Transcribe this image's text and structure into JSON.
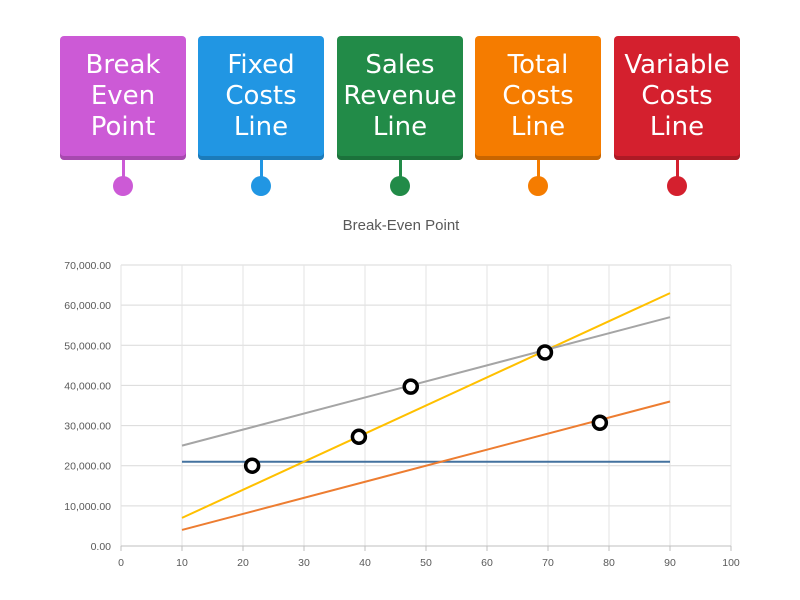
{
  "labels": [
    {
      "lines": [
        "Break",
        "Even",
        "Point"
      ],
      "color": "#cc5ad6"
    },
    {
      "lines": [
        "Fixed",
        "Costs",
        "Line"
      ],
      "color": "#2196e3"
    },
    {
      "lines": [
        "Sales",
        "Revenue",
        "Line"
      ],
      "color": "#228b48"
    },
    {
      "lines": [
        "Total",
        "Costs",
        "Line"
      ],
      "color": "#f57c00"
    },
    {
      "lines": [
        "Variable",
        "Costs",
        "Line"
      ],
      "color": "#d4202e"
    }
  ],
  "chart_data": {
    "type": "line",
    "title": "Break-Even Point",
    "xlabel": "",
    "ylabel": "",
    "xlim": [
      0,
      100
    ],
    "ylim": [
      0,
      70000
    ],
    "x_ticks": [
      "0",
      "10",
      "20",
      "30",
      "40",
      "50",
      "60",
      "70",
      "80",
      "90",
      "100"
    ],
    "y_ticks": [
      "0.00",
      "10,000.00",
      "20,000.00",
      "30,000.00",
      "40,000.00",
      "50,000.00",
      "60,000.00",
      "70,000.00"
    ],
    "grid": true,
    "legend": "none",
    "series": [
      {
        "color": "#44729f",
        "x": [
          10,
          90
        ],
        "y": [
          21000,
          21000
        ]
      },
      {
        "color": "#ffc000",
        "x": [
          10,
          90
        ],
        "y": [
          7000,
          63000
        ]
      },
      {
        "color": "#a5a5a5",
        "x": [
          10,
          90
        ],
        "y": [
          25000,
          57000
        ]
      },
      {
        "color": "#ed7d31",
        "x": [
          10,
          90
        ],
        "y": [
          4000,
          36000
        ]
      }
    ],
    "markers": [
      {
        "x": 21.5,
        "y": 20000
      },
      {
        "x": 39,
        "y": 27200
      },
      {
        "x": 47.5,
        "y": 39700
      },
      {
        "x": 69.5,
        "y": 48200
      },
      {
        "x": 78.5,
        "y": 30700
      }
    ]
  }
}
